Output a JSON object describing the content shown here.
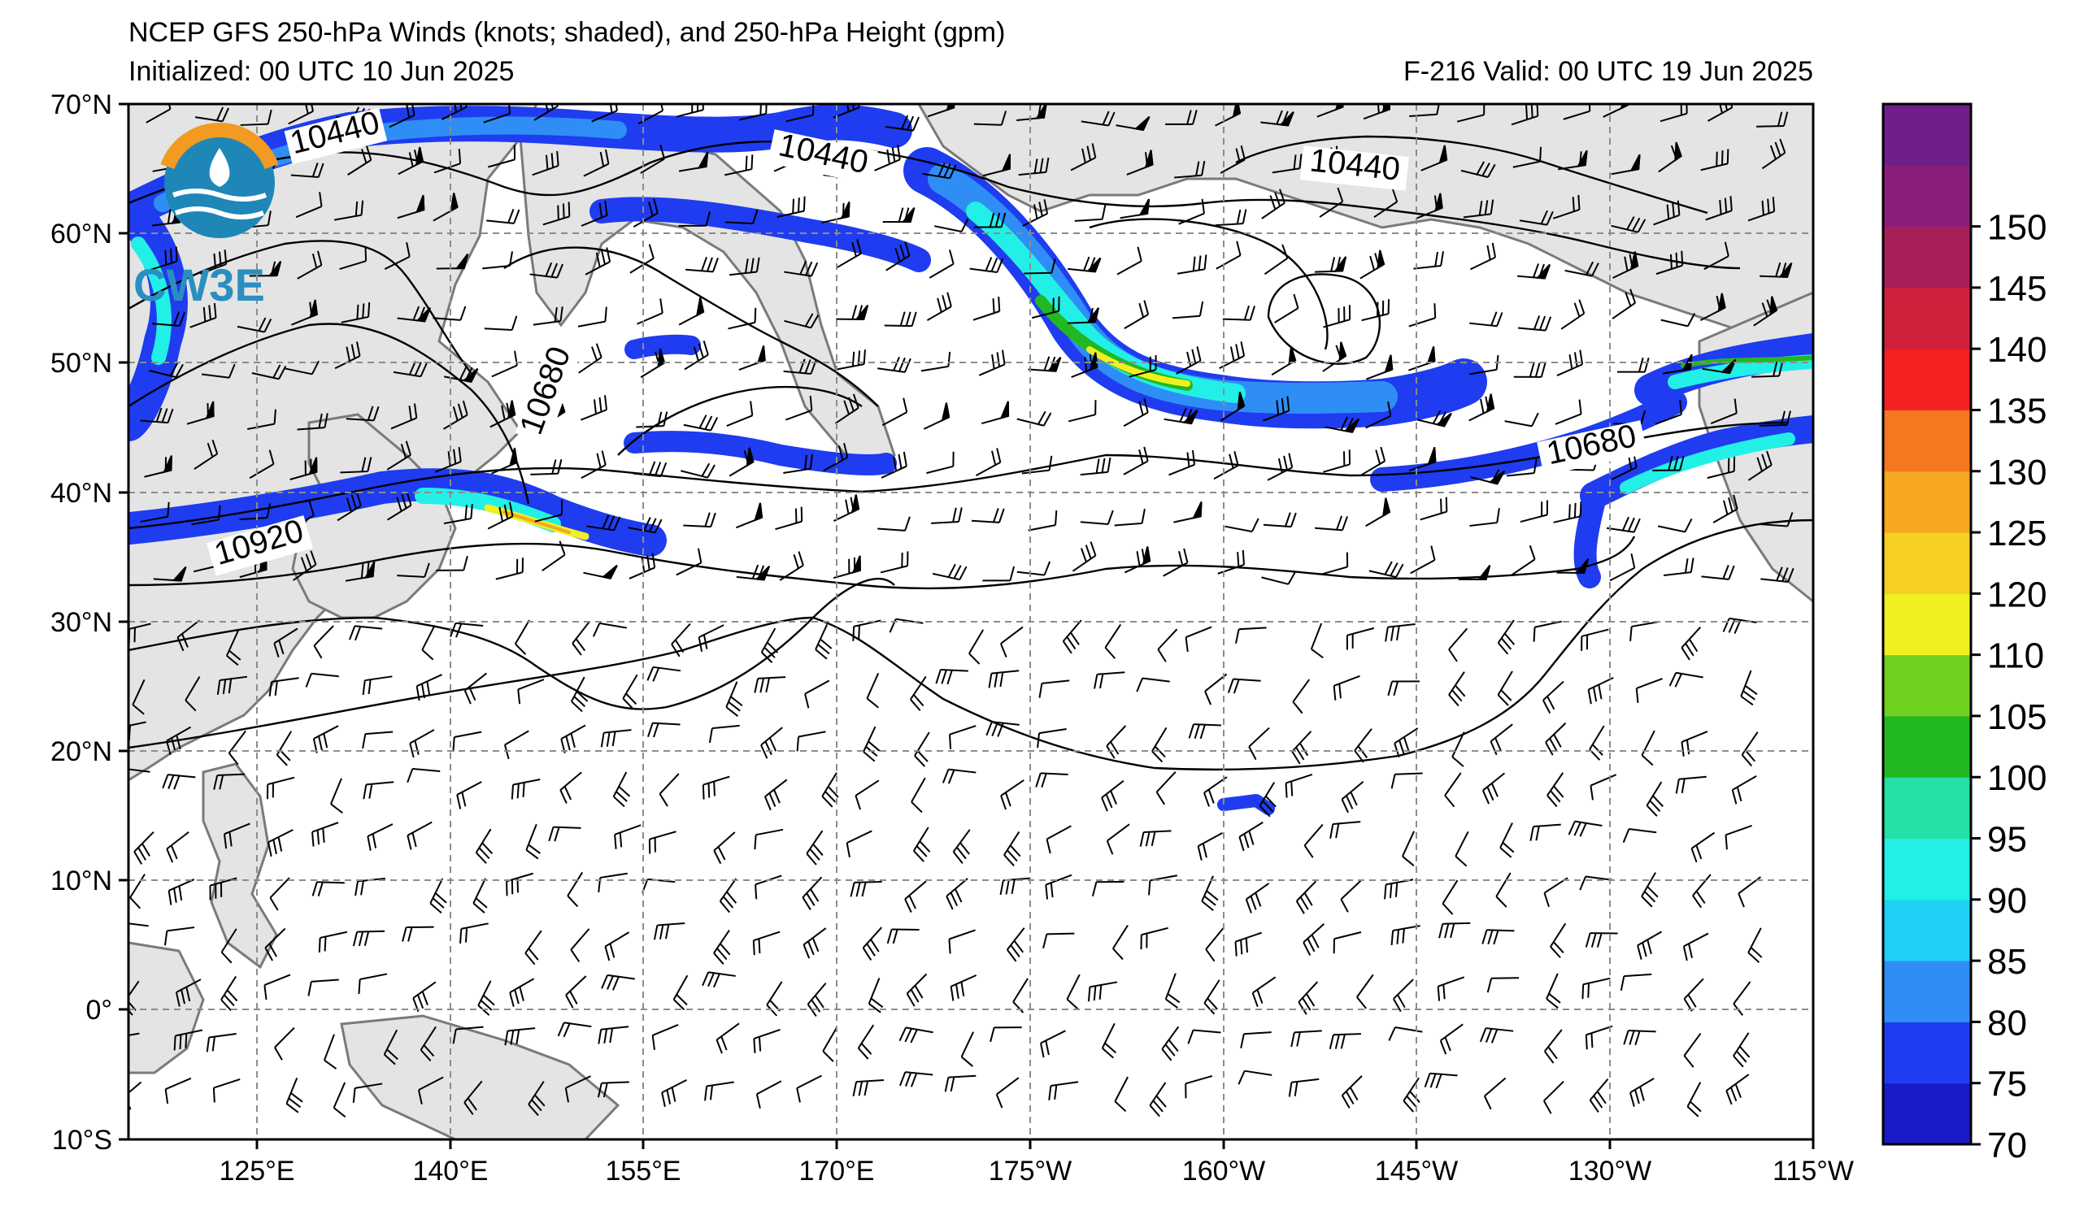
{
  "title": "NCEP GFS 250-hPa Winds (knots; shaded), and 250-hPa Height (gpm)",
  "initialized": "Initialized: 00 UTC 10 Jun 2025",
  "valid": "F-216  Valid: 00 UTC 19 Jun 2025",
  "logo": {
    "text": "CW3E"
  },
  "lat_ticks": [
    "70°N",
    "60°N",
    "50°N",
    "40°N",
    "30°N",
    "20°N",
    "10°N",
    "0°",
    "10°S"
  ],
  "lon_ticks": [
    "125°E",
    "140°E",
    "155°E",
    "170°E",
    "175°W",
    "160°W",
    "145°W",
    "130°W",
    "115°W"
  ],
  "colorbar": {
    "labels": [
      "70",
      "75",
      "80",
      "85",
      "90",
      "95",
      "100",
      "105",
      "110",
      "120",
      "125",
      "130",
      "135",
      "140",
      "145",
      "150"
    ],
    "colors": [
      "#1a1ac8",
      "#1f3cf0",
      "#2e8ef5",
      "#1fd0f5",
      "#22f0e6",
      "#22e0a6",
      "#22b822",
      "#6fd020",
      "#f0f020",
      "#f5d020",
      "#f5a820",
      "#f57820",
      "#f52020",
      "#d0203c",
      "#a81e5a",
      "#8a1e7a",
      "#701e8a"
    ]
  },
  "height_contour_labels": [
    "10440",
    "10440",
    "10440",
    "10680",
    "10680",
    "10920"
  ],
  "map_colors": {
    "land": "#e4e4e4",
    "coast": "#7a7a7a",
    "grid": "#8c8c8c"
  }
}
